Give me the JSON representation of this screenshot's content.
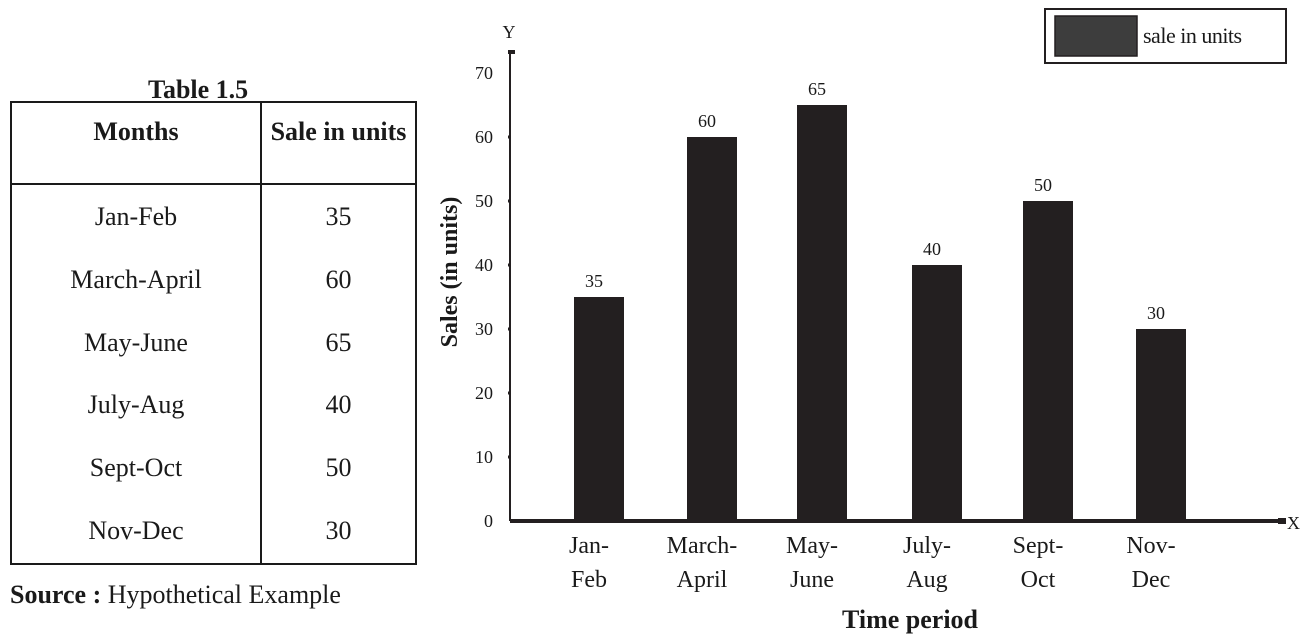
{
  "table": {
    "caption": "Table 1.5",
    "headers": [
      "Months",
      "Sale in units"
    ],
    "rows": [
      [
        "Jan-Feb",
        "35"
      ],
      [
        "March-April",
        "60"
      ],
      [
        "May-June",
        "65"
      ],
      [
        "July-Aug",
        "40"
      ],
      [
        "Sept-Oct",
        "50"
      ],
      [
        "Nov-Dec",
        "30"
      ]
    ],
    "source_label": "Source :",
    "source_text": " Hypothetical Example"
  },
  "chart_data": {
    "type": "bar",
    "categories": [
      [
        "Jan-",
        "Feb"
      ],
      [
        "March-",
        "April"
      ],
      [
        "May-",
        "June"
      ],
      [
        "July-",
        "Aug"
      ],
      [
        "Sept-",
        "Oct"
      ],
      [
        "Nov-",
        "Dec"
      ]
    ],
    "series": [
      {
        "name": "sale in units",
        "values": [
          35,
          60,
          65,
          40,
          50,
          30
        ],
        "color": "#231f20"
      }
    ],
    "xlabel": "Time period",
    "ylabel": "Sales (in units)",
    "x_axis_letter": "X",
    "y_axis_letter": "Y",
    "ylim": [
      0,
      70
    ],
    "yticks": [
      0,
      10,
      20,
      30,
      40,
      50,
      60,
      70
    ],
    "grid": false,
    "legend_position": "top-right",
    "legend_swatch_color": "#3d3d3d",
    "data_labels": true
  }
}
